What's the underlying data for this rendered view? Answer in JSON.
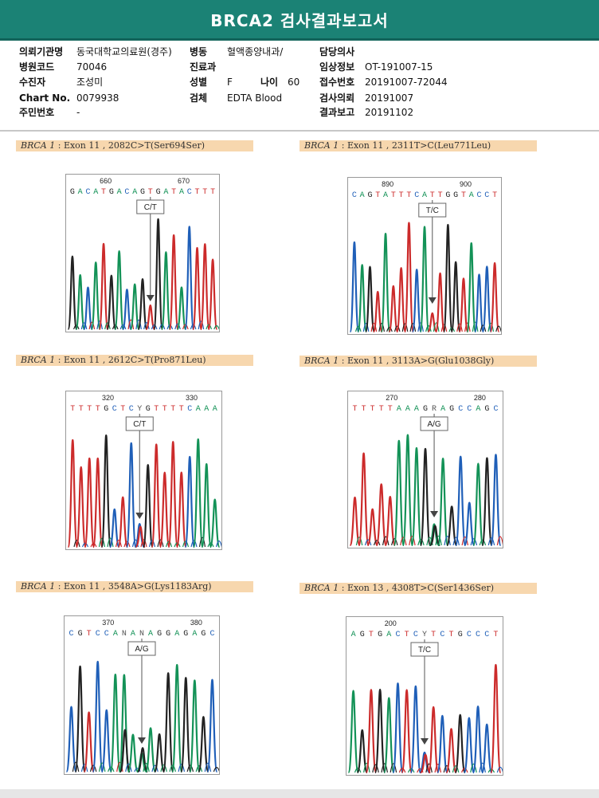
{
  "header": {
    "title": "BRCA2 검사결과보고서"
  },
  "info": {
    "institution_label": "의뢰기관명",
    "institution_value": "동국대학교의료원(경주)",
    "ward_label": "병동",
    "ward_value": "혈액종양내과/",
    "doctor_label": "담당의사",
    "doctor_value": "",
    "hospital_code_label": "병원코드",
    "hospital_code_value": "70046",
    "department_label": "진료과",
    "department_value": "",
    "clinical_label": "임상정보",
    "clinical_value": "OT-191007-15",
    "patient_label": "수진자",
    "patient_value": "조성미",
    "sex_label": "성별",
    "sex_value": "F",
    "age_label": "나이",
    "age_value": "60",
    "receipt_label": "접수번호",
    "receipt_value": "20191007-72044",
    "chart_label": "Chart No.",
    "chart_value": "0079938",
    "specimen_label": "검체",
    "specimen_value": "EDTA Blood",
    "request_label": "검사의뢰",
    "request_value": "20191007",
    "ssn_label": "주민번호",
    "ssn_value": "-",
    "report_label": "결과보고",
    "report_value": "20191102"
  },
  "colors": {
    "header": "#1b8275",
    "banner": "#f7d7ae",
    "A": "#139257",
    "C": "#1f5fb8",
    "G": "#222222",
    "T": "#cc2b2b"
  },
  "panels": [
    {
      "gene": "BRCA 1",
      "desc": "Exon 11 , 2082C>T(Ser694Ser)",
      "pos1": "660",
      "pos2": "670",
      "seq": "GACATGACAGTGATACTTT",
      "variant": "C/T",
      "mut_index": 10
    },
    {
      "gene": "BRCA 1",
      "desc": "Exon 11 , 2311T>C(Leu771Leu)",
      "pos1": "890",
      "pos2": "900",
      "seq": "CAGTATTTCATTGGTACCT",
      "variant": "T/C",
      "mut_index": 10
    },
    {
      "gene": "BRCA 1",
      "desc": "Exon 11 , 2612C>T(Pro871Leu)",
      "pos1": "320",
      "pos2": "330",
      "seq": "TTTTGCTCYGTTTTCAAA",
      "variant": "C/T",
      "mut_index": 8
    },
    {
      "gene": "BRCA 1",
      "desc": "Exon 11 , 3113A>G(Glu1038Gly)",
      "pos1": "270",
      "pos2": "280",
      "seq": "TTTTTAAAGRAGCCAGC",
      "variant": "A/G",
      "mut_index": 9
    },
    {
      "gene": "BRCA 1",
      "desc": "Exon 11 , 3548A>G(Lys1183Arg)",
      "pos1": "370",
      "pos2": "380",
      "seq": "CGTCCANANAGGAGAGC",
      "variant": "A/G",
      "mut_index": 8
    },
    {
      "gene": "BRCA 1",
      "desc": "Exon 13 , 4308T>C(Ser1436Ser)",
      "pos1": "200",
      "pos2": "",
      "seq": "AGTGACTCYTCTGCCCT",
      "variant": "T/C",
      "mut_index": 8
    }
  ]
}
